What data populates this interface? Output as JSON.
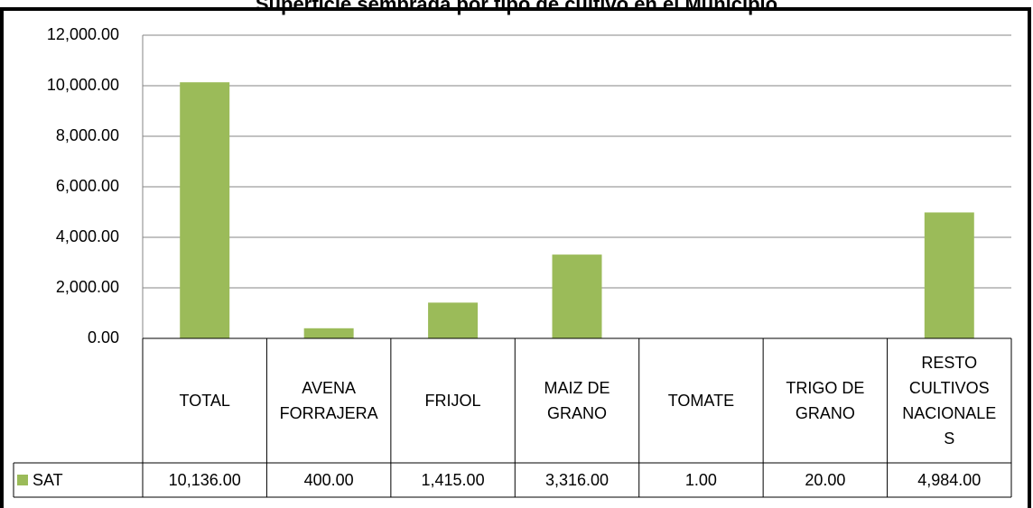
{
  "chart_data": {
    "type": "bar",
    "title": "Superficie sembrada por tipo de cultivo en el Municipio",
    "categories": [
      "TOTAL",
      "AVENA FORRAJERA",
      "FRIJOL",
      "MAIZ DE GRANO",
      "TOMATE",
      "TRIGO DE GRANO",
      "RESTO CULTIVOS NACIONALES"
    ],
    "series": [
      {
        "name": "SAT",
        "color": "#9bbb59",
        "values": [
          10136,
          400,
          1415,
          3316,
          1,
          20,
          4984
        ],
        "value_labels": [
          "10,136.00",
          "400.00",
          "1,415.00",
          "3,316.00",
          "1.00",
          "20.00",
          "4,984.00"
        ]
      }
    ],
    "ylim": [
      0,
      12000
    ],
    "yticks": [
      {
        "value": 0,
        "label": "0.00"
      },
      {
        "value": 2000,
        "label": "2,000.00"
      },
      {
        "value": 4000,
        "label": "4,000.00"
      },
      {
        "value": 6000,
        "label": "6,000.00"
      },
      {
        "value": 8000,
        "label": "8,000.00"
      },
      {
        "value": 10000,
        "label": "10,000.00"
      },
      {
        "value": 12000,
        "label": "12,000.00"
      }
    ],
    "grid": true,
    "data_table": true
  }
}
